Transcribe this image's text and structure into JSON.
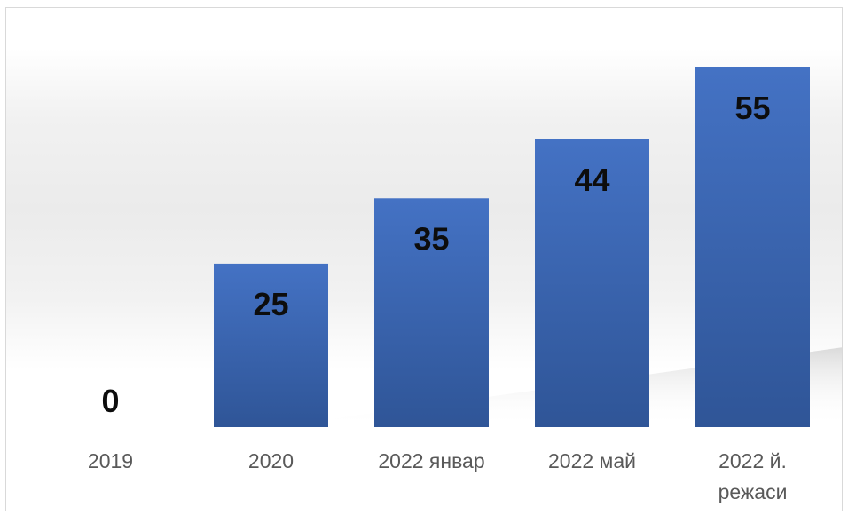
{
  "chart_data": {
    "type": "bar",
    "categories": [
      "2019",
      "2020",
      "2022 январ",
      "2022 май",
      "2022 й. режаси"
    ],
    "category_lines": [
      [
        "2019"
      ],
      [
        "2020"
      ],
      [
        "2022 январ"
      ],
      [
        "2022 май"
      ],
      [
        "2022 й.",
        "режаси"
      ]
    ],
    "values": [
      0,
      25,
      35,
      44,
      55
    ],
    "data_labels": [
      "0",
      "25",
      "35",
      "44",
      "55"
    ],
    "title": "",
    "xlabel": "",
    "ylabel": "",
    "ylim": [
      0,
      55
    ],
    "grid": false,
    "legend": "none",
    "colors": {
      "bar_top": "#4472c4",
      "bar_bottom": "#2f5597",
      "data_label": "#0d0d0d",
      "category_label": "#595959"
    }
  }
}
